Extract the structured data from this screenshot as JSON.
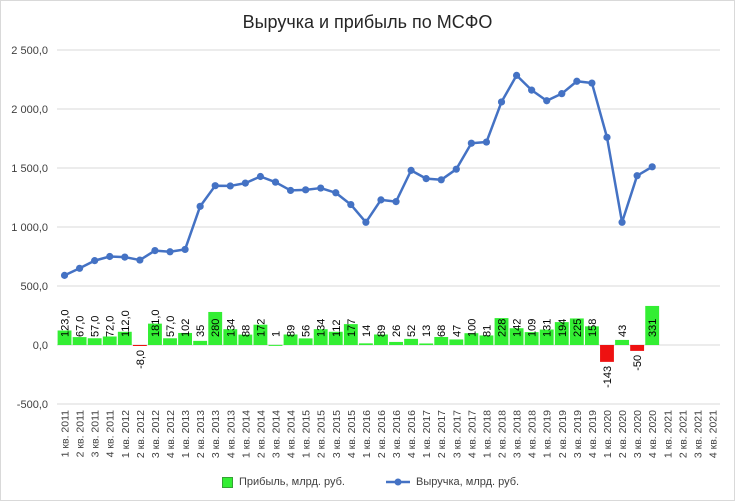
{
  "chart_data": {
    "type": "bar+line",
    "title": "Выручка и прибыль по МСФО",
    "ylim": [
      -500,
      2500
    ],
    "yticks": [
      -500,
      0,
      500,
      1000,
      1500,
      2000,
      2500
    ],
    "ytick_labels": [
      "-500,0",
      "0,0",
      "500,0",
      "1 000,0",
      "1 500,0",
      "2 000,0",
      "2 500,0"
    ],
    "categories": [
      "1 кв. 2011",
      "2 кв. 2011",
      "3 кв. 2011",
      "4 кв. 2011",
      "1 кв. 2012",
      "2 кв. 2012",
      "3 кв. 2012",
      "4 кв. 2012",
      "1 кв. 2013",
      "2 кв. 2013",
      "3 кв. 2013",
      "4 кв. 2013",
      "1 кв. 2014",
      "2 кв. 2014",
      "3 кв. 2014",
      "4 кв. 2014",
      "1 кв. 2015",
      "2 кв. 2015",
      "3 кв. 2015",
      "4 кв. 2015",
      "1 кв. 2016",
      "2 кв. 2016",
      "3 кв. 2016",
      "4 кв. 2016",
      "1 кв. 2017",
      "2 кв. 2017",
      "3 кв. 2017",
      "4 кв. 2017",
      "1 кв. 2018",
      "2 кв. 2018",
      "3 кв. 2018",
      "4 кв. 2018",
      "1 кв. 2019",
      "2 кв. 2019",
      "3 кв. 2019",
      "4 кв. 2019",
      "1 кв. 2020",
      "2 кв. 2020",
      "3 кв. 2020",
      "4 кв. 2020",
      "1 кв. 2021",
      "2 кв. 2021",
      "3 кв. 2021",
      "4 кв. 2021"
    ],
    "series": [
      {
        "name": "Прибыль, млрд. руб.",
        "kind": "bar",
        "color": "#33ee33",
        "negative_color": "#ee1111",
        "values": [
          123,
          67,
          57,
          72,
          112,
          -8,
          181,
          57,
          102,
          35,
          280,
          134,
          88,
          172,
          1,
          89,
          56,
          134,
          112,
          177,
          14,
          89,
          26,
          52,
          13,
          68,
          47,
          100,
          81,
          228,
          142,
          109,
          131,
          194,
          225,
          158,
          -143,
          43,
          -50,
          331,
          null,
          null,
          null,
          null
        ],
        "labels": [
          "123,0",
          "67,0",
          "57,0",
          "72,0",
          "112,0",
          "-8,0",
          "181,0",
          "57,0",
          "102",
          "35",
          "280",
          "134",
          "88",
          "172",
          "1",
          "89",
          "56",
          "134",
          "112",
          "177",
          "14",
          "89",
          "26",
          "52",
          "13",
          "68",
          "47",
          "100",
          "81",
          "228",
          "142",
          "109",
          "131",
          "194",
          "225",
          "158",
          "-143",
          "43",
          "-50",
          "331",
          "",
          "",
          "",
          ""
        ]
      },
      {
        "name": "Выручка, млрд. руб.",
        "kind": "line",
        "color": "#4472c4",
        "values": [
          590,
          650,
          715,
          750,
          745,
          720,
          800,
          790,
          810,
          1175,
          1350,
          1348,
          1372,
          1428,
          1380,
          1310,
          1315,
          1330,
          1290,
          1190,
          1040,
          1230,
          1215,
          1480,
          1410,
          1400,
          1490,
          1710,
          1720,
          2060,
          2285,
          2160,
          2070,
          2130,
          2235,
          2220,
          1760,
          1040,
          1435,
          1510,
          null,
          null,
          null,
          null
        ]
      }
    ],
    "legend": "bottom"
  }
}
